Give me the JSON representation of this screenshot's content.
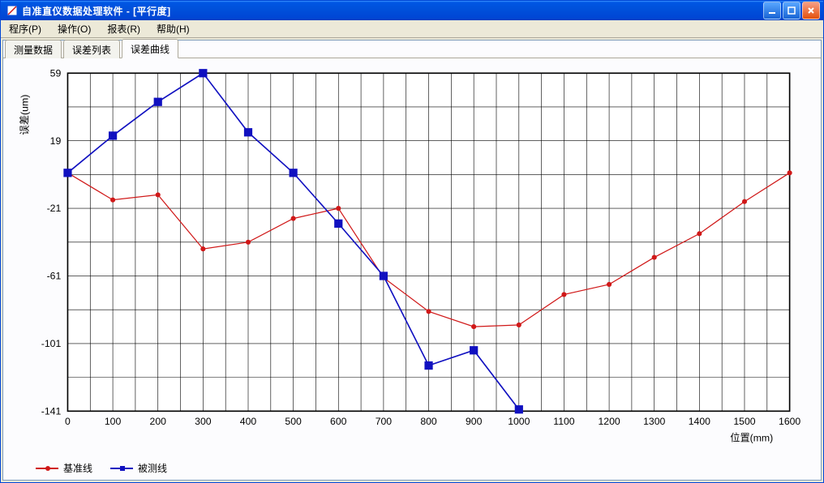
{
  "window": {
    "title": "自准直仪数据处理软件  -  [平行度]",
    "icon_emoji": "📐"
  },
  "menu": {
    "items": [
      {
        "label": "程序(P)"
      },
      {
        "label": "操作(O)"
      },
      {
        "label": "报表(R)"
      },
      {
        "label": "帮助(H)"
      }
    ]
  },
  "tabs": {
    "items": [
      {
        "label": "测量数据",
        "active": false
      },
      {
        "label": "误差列表",
        "active": false
      },
      {
        "label": "误差曲线",
        "active": true
      }
    ]
  },
  "chart": {
    "type": "line",
    "y_axis_label": "误差(um)",
    "x_axis_label": "位置(mm)",
    "xlim": [
      0,
      1600
    ],
    "ylim": [
      -141,
      59
    ],
    "x_ticks": [
      0,
      100,
      200,
      300,
      400,
      500,
      600,
      700,
      800,
      900,
      1000,
      1100,
      1200,
      1300,
      1400,
      1500,
      1600
    ],
    "y_ticks": [
      -141,
      -101,
      -61,
      -21,
      19,
      59
    ],
    "x_grid_values": [
      0,
      50,
      100,
      150,
      200,
      250,
      300,
      350,
      400,
      450,
      500,
      550,
      600,
      650,
      700,
      750,
      800,
      850,
      900,
      950,
      1000,
      1050,
      1100,
      1150,
      1200,
      1250,
      1300,
      1350,
      1400,
      1450,
      1500,
      1550,
      1600
    ],
    "y_grid_values": [
      -141,
      -121,
      -101,
      -81,
      -61,
      -41,
      -21,
      -1,
      19,
      39,
      59
    ],
    "background_color": "#ffffff",
    "grid_color": "#000000",
    "axis_color": "#000000",
    "tick_fontsize": 12,
    "label_fontsize": 12,
    "series": [
      {
        "name": "基准线",
        "color": "#d01818",
        "marker": "circle",
        "marker_size": 3,
        "line_width": 1.2,
        "x": [
          0,
          100,
          200,
          300,
          400,
          500,
          600,
          700,
          800,
          900,
          1000,
          1100,
          1200,
          1300,
          1400,
          1500,
          1600
        ],
        "y": [
          0,
          -16,
          -13,
          -45,
          -41,
          -27,
          -21,
          -62,
          -82,
          -91,
          -90,
          -72,
          -66,
          -50,
          -36,
          -17,
          0
        ]
      },
      {
        "name": "被测线",
        "color": "#1010c0",
        "marker": "square",
        "marker_size": 5,
        "line_width": 1.6,
        "x": [
          0,
          100,
          200,
          300,
          400,
          500,
          600,
          700,
          800,
          900,
          1000
        ],
        "y": [
          0,
          22,
          42,
          59,
          24,
          0,
          -30,
          -61,
          -114,
          -105,
          -140
        ]
      }
    ]
  },
  "legend": {
    "items": [
      {
        "label": "基准线",
        "color": "#d01818",
        "marker": "circle"
      },
      {
        "label": "被测线",
        "color": "#1010c0",
        "marker": "square"
      }
    ]
  }
}
